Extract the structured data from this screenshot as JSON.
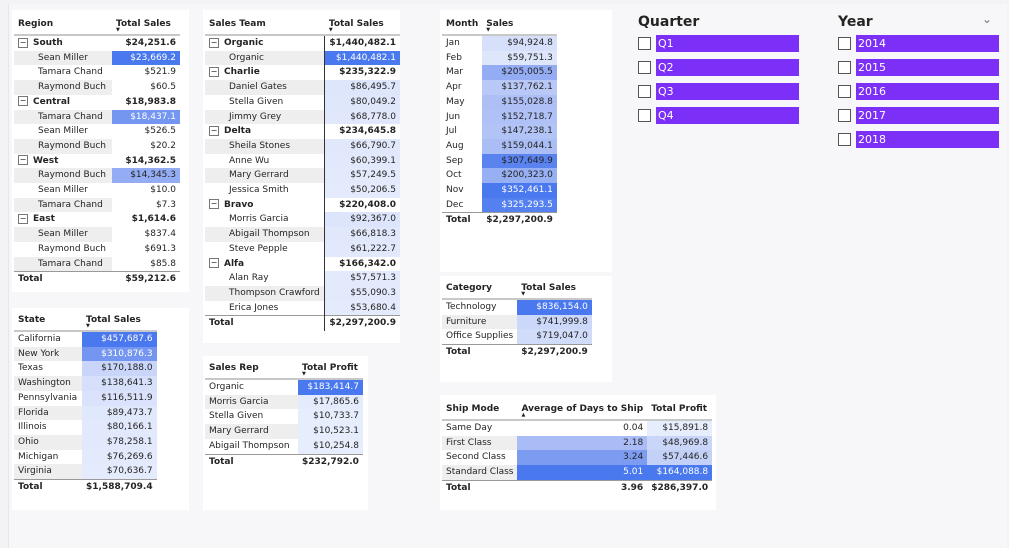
{
  "region_table": {
    "headers": {
      "label": "Region",
      "value": "Total Sales"
    },
    "rows": [
      {
        "label": "South",
        "value": "$24,251.6",
        "group": true
      },
      {
        "label": "Sean Miller",
        "value": "$23,669.2",
        "shade": "#4a78ee",
        "light": true
      },
      {
        "label": "Tamara Chand",
        "value": "$521.9"
      },
      {
        "label": "Raymond Buch",
        "value": "$60.5"
      },
      {
        "label": "Central",
        "value": "$18,983.8",
        "group": true
      },
      {
        "label": "Tamara Chand",
        "value": "$18,437.1",
        "shade": "#7496f0",
        "light": true
      },
      {
        "label": "Sean Miller",
        "value": "$526.5"
      },
      {
        "label": "Raymond Buch",
        "value": "$20.2"
      },
      {
        "label": "West",
        "value": "$14,362.5",
        "group": true
      },
      {
        "label": "Raymond Buch",
        "value": "$14,345.3",
        "shade": "#94acf3"
      },
      {
        "label": "Sean Miller",
        "value": "$10.0"
      },
      {
        "label": "Tamara Chand",
        "value": "$7.3"
      },
      {
        "label": "East",
        "value": "$1,614.6",
        "group": true
      },
      {
        "label": "Sean Miller",
        "value": "$837.4"
      },
      {
        "label": "Raymond Buch",
        "value": "$691.3"
      },
      {
        "label": "Tamara Chand",
        "value": "$85.8"
      }
    ],
    "total": {
      "label": "Total",
      "value": "$59,212.6"
    }
  },
  "state_table": {
    "headers": {
      "label": "State",
      "value": "Total Sales"
    },
    "rows": [
      {
        "label": "California",
        "value": "$457,687.6",
        "shade": "#4a78ee",
        "light": true
      },
      {
        "label": "New York",
        "value": "$310,876.3",
        "shade": "#7496f0",
        "light": true
      },
      {
        "label": "Texas",
        "value": "$170,188.0",
        "shade": "#c9d6fa"
      },
      {
        "label": "Washington",
        "value": "$138,641.3",
        "shade": "#d6e0fb"
      },
      {
        "label": "Pennsylvania",
        "value": "$116,511.9",
        "shade": "#dae3fb"
      },
      {
        "label": "Florida",
        "value": "$89,473.7",
        "shade": "#e0e8fc"
      },
      {
        "label": "Illinois",
        "value": "$80,166.1",
        "shade": "#e2e9fc"
      },
      {
        "label": "Ohio",
        "value": "$78,258.1",
        "shade": "#e2e9fc"
      },
      {
        "label": "Michigan",
        "value": "$76,269.6",
        "shade": "#e3eafc"
      },
      {
        "label": "Virginia",
        "value": "$70,636.7",
        "shade": "#e4ebfc"
      }
    ],
    "total": {
      "label": "Total",
      "value": "$1,588,709.4"
    }
  },
  "team_table": {
    "headers": {
      "label": "Sales Team",
      "value": "Total Sales"
    },
    "rows": [
      {
        "label": "Organic",
        "value": "$1,440,482.1",
        "group": true
      },
      {
        "label": "Organic",
        "value": "$1,440,482.1",
        "shade": "#4a78ee",
        "light": true
      },
      {
        "label": "Charlie",
        "value": "$235,322.9",
        "group": true
      },
      {
        "label": "Daniel Gates",
        "value": "$86,495.7",
        "shade": "#dde6fb"
      },
      {
        "label": "Stella Given",
        "value": "$80,049.2",
        "shade": "#dee7fb"
      },
      {
        "label": "Jimmy Grey",
        "value": "$68,778.0",
        "shade": "#e1e8fc"
      },
      {
        "label": "Delta",
        "value": "$234,645.8",
        "group": true
      },
      {
        "label": "Sheila Stones",
        "value": "$66,790.7",
        "shade": "#e1e8fc"
      },
      {
        "label": "Anne Wu",
        "value": "$60,399.1",
        "shade": "#e2e9fc"
      },
      {
        "label": "Mary Gerrard",
        "value": "$57,249.5",
        "shade": "#e3eafc"
      },
      {
        "label": "Jessica Smith",
        "value": "$50,206.5",
        "shade": "#e4ebfc"
      },
      {
        "label": "Bravo",
        "value": "$220,408.0",
        "group": true
      },
      {
        "label": "Morris Garcia",
        "value": "$92,367.0",
        "shade": "#dce5fb"
      },
      {
        "label": "Abigail Thompson",
        "value": "$66,818.3",
        "shade": "#e1e8fc"
      },
      {
        "label": "Steve Pepple",
        "value": "$61,222.7",
        "shade": "#e2e9fc"
      },
      {
        "label": "Alfa",
        "value": "$166,342.0",
        "group": true
      },
      {
        "label": "Alan Ray",
        "value": "$57,571.3",
        "shade": "#e3eafc"
      },
      {
        "label": "Thompson Crawford",
        "value": "$55,090.3",
        "shade": "#e3eafc"
      },
      {
        "label": "Erica Jones",
        "value": "$53,680.4",
        "shade": "#e4ebfc"
      }
    ],
    "total": {
      "label": "Total",
      "value": "$2,297,200.9"
    }
  },
  "rep_table": {
    "headers": {
      "label": "Sales Rep",
      "value": "Total Profit"
    },
    "rows": [
      {
        "label": "Organic",
        "value": "$183,414.7",
        "shade": "#4a78ee",
        "light": true
      },
      {
        "label": "Morris Garcia",
        "value": "$17,865.6",
        "shade": "#e4ebfc"
      },
      {
        "label": "Stella Given",
        "value": "$10,733.7",
        "shade": "#e6edfc"
      },
      {
        "label": "Mary Gerrard",
        "value": "$10,523.1",
        "shade": "#e6edfc"
      },
      {
        "label": "Abigail Thompson",
        "value": "$10,254.8",
        "shade": "#e6edfc"
      }
    ],
    "total": {
      "label": "Total",
      "value": "$232,792.0"
    }
  },
  "month_table": {
    "headers": {
      "label": "Month",
      "value": "Sales"
    },
    "rows": [
      {
        "label": "Jan",
        "value": "$94,924.8",
        "shade": "#d6e0fb"
      },
      {
        "label": "Feb",
        "value": "$59,751.3",
        "shade": "#dde6fb"
      },
      {
        "label": "Mar",
        "value": "$205,005.5",
        "shade": "#94acf3"
      },
      {
        "label": "Apr",
        "value": "$137,762.1",
        "shade": "#b8c9f7"
      },
      {
        "label": "May",
        "value": "$155,028.8",
        "shade": "#aebff6"
      },
      {
        "label": "Jun",
        "value": "$152,718.7",
        "shade": "#afc1f6"
      },
      {
        "label": "Jul",
        "value": "$147,238.1",
        "shade": "#b2c3f6"
      },
      {
        "label": "Aug",
        "value": "$159,044.1",
        "shade": "#abbdf5"
      },
      {
        "label": "Sep",
        "value": "$307,649.9",
        "shade": "#5a83ef"
      },
      {
        "label": "Oct",
        "value": "$200,323.0",
        "shade": "#97aff3"
      },
      {
        "label": "Nov",
        "value": "$352,461.1",
        "shade": "#4a78ee",
        "light": true
      },
      {
        "label": "Dec",
        "value": "$325,293.5",
        "shade": "#5580ef",
        "light": true
      }
    ],
    "total": {
      "label": "Total",
      "value": "$2,297,200.9"
    }
  },
  "category_table": {
    "headers": {
      "label": "Category",
      "value": "Total Sales"
    },
    "rows": [
      {
        "label": "Technology",
        "value": "$836,154.0",
        "shade": "#4a78ee",
        "light": true
      },
      {
        "label": "Furniture",
        "value": "$741,999.8",
        "shade": "#cbd8fa"
      },
      {
        "label": "Office Supplies",
        "value": "$719,047.0",
        "shade": "#d0dcfa"
      }
    ],
    "total": {
      "label": "Total",
      "value": "$2,297,200.9"
    }
  },
  "ship_table": {
    "headers": {
      "label": "Ship Mode",
      "days": "Average of Days to Ship",
      "profit": "Total Profit"
    },
    "rows": [
      {
        "label": "Same Day",
        "days": "0.04",
        "profit": "$15,891.8",
        "dshade": "#ffffff",
        "pshade": "#e6edfc"
      },
      {
        "label": "First Class",
        "days": "2.18",
        "profit": "$48,969.8",
        "dshade": "#aabcf5",
        "pshade": "#c9d6fa"
      },
      {
        "label": "Second Class",
        "days": "3.24",
        "profit": "$57,446.6",
        "dshade": "#7c9cf1",
        "pshade": "#c3d1f9"
      },
      {
        "label": "Standard Class",
        "days": "5.01",
        "profit": "$164,088.8",
        "dshade": "#4a78ee",
        "pshade": "#4a78ee",
        "light": true
      }
    ],
    "total": {
      "label": "Total",
      "days": "3.96",
      "profit": "$286,397.0"
    }
  },
  "quarter_slicer": {
    "title": "Quarter",
    "items": [
      "Q1",
      "Q2",
      "Q3",
      "Q4"
    ]
  },
  "year_slicer": {
    "title": "Year",
    "items": [
      "2014",
      "2015",
      "2016",
      "2017",
      "2018"
    ]
  },
  "colors": {
    "slicer_fill": "#7b2ff7",
    "accent": "#4a78ee"
  }
}
